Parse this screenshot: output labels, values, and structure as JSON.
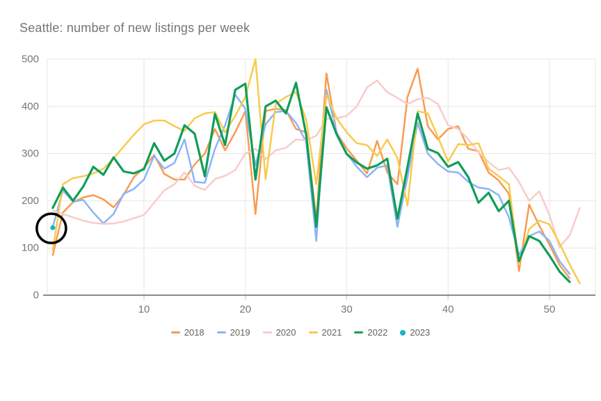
{
  "title": "Seattle: number of new listings per week",
  "chart_data": {
    "type": "line",
    "title": "Seattle: number of new listings per week",
    "xlabel": "",
    "ylabel": "",
    "grid": true,
    "legend_position": "bottom",
    "x_axis": {
      "min": 0.46,
      "max": 54.54,
      "ticks": [
        10,
        20,
        30,
        40,
        50
      ]
    },
    "y_axis": {
      "min": 0,
      "max": 500,
      "ticks": [
        0,
        100,
        200,
        300,
        400,
        500
      ]
    },
    "series": [
      {
        "name": "2018",
        "color": "#F89B50",
        "style": "line",
        "start_week": 1,
        "values": [
          85,
          175,
          197,
          207,
          212,
          203,
          186,
          213,
          250,
          270,
          297,
          257,
          245,
          245,
          277,
          300,
          352,
          307,
          345,
          390,
          172,
          390,
          395,
          392,
          352,
          345,
          160,
          470,
          344,
          311,
          285,
          258,
          327,
          260,
          235,
          420,
          480,
          358,
          330,
          352,
          358,
          310,
          305,
          260,
          243,
          215,
          51,
          192,
          147,
          107,
          64,
          36
        ]
      },
      {
        "name": "2019",
        "color": "#8AB4F8",
        "style": "line",
        "start_week": 1,
        "values": [
          145,
          222,
          198,
          202,
          175,
          152,
          172,
          215,
          225,
          245,
          295,
          268,
          280,
          330,
          240,
          238,
          310,
          360,
          425,
          395,
          275,
          362,
          388,
          390,
          365,
          325,
          115,
          435,
          345,
          300,
          272,
          250,
          270,
          275,
          145,
          250,
          365,
          300,
          278,
          262,
          260,
          240,
          228,
          225,
          212,
          165,
          85,
          125,
          135,
          115,
          72,
          45
        ]
      },
      {
        "name": "2020",
        "color": "#F7CCC9",
        "style": "line",
        "start_week": 1,
        "values": [
          180,
          172,
          165,
          158,
          153,
          151,
          152,
          156,
          163,
          170,
          196,
          222,
          235,
          260,
          232,
          223,
          246,
          253,
          265,
          300,
          310,
          288,
          307,
          312,
          330,
          328,
          338,
          373,
          375,
          380,
          400,
          440,
          455,
          430,
          418,
          405,
          415,
          418,
          405,
          360,
          352,
          330,
          303,
          282,
          265,
          270,
          240,
          200,
          220,
          170,
          102,
          127,
          185
        ]
      },
      {
        "name": "2021",
        "color": "#F7CB4D",
        "style": "line",
        "start_week": 1,
        "values": [
          95,
          235,
          248,
          252,
          258,
          268,
          290,
          315,
          340,
          362,
          370,
          370,
          358,
          348,
          375,
          385,
          388,
          345,
          380,
          420,
          500,
          246,
          405,
          420,
          430,
          372,
          235,
          425,
          375,
          345,
          322,
          318,
          295,
          330,
          291,
          190,
          390,
          385,
          335,
          283,
          320,
          318,
          322,
          268,
          252,
          235,
          65,
          140,
          158,
          150,
          110,
          65,
          25
        ]
      },
      {
        "name": "2022",
        "color": "#109D58",
        "style": "line",
        "start_week": 1,
        "values": [
          185,
          228,
          200,
          230,
          272,
          255,
          292,
          262,
          258,
          267,
          322,
          285,
          300,
          360,
          342,
          252,
          384,
          318,
          435,
          448,
          245,
          400,
          412,
          385,
          450,
          340,
          145,
          398,
          341,
          299,
          281,
          268,
          275,
          289,
          162,
          272,
          385,
          310,
          301,
          272,
          282,
          250,
          196,
          217,
          178,
          200,
          72,
          125,
          115,
          84,
          50,
          28
        ]
      },
      {
        "name": "2023",
        "color": "#12B5CB",
        "style": "point",
        "start_week": 1,
        "values": [
          143
        ]
      }
    ],
    "annotation": {
      "shape": "circle",
      "week": 1,
      "value": 143,
      "radius": 21,
      "color": "#000000"
    }
  },
  "colors": {
    "grid": "#E6E6E6",
    "axis_line": "#8A8A8A",
    "tick_label": "#757575",
    "title": "#757575",
    "legend_text": "#616161"
  }
}
